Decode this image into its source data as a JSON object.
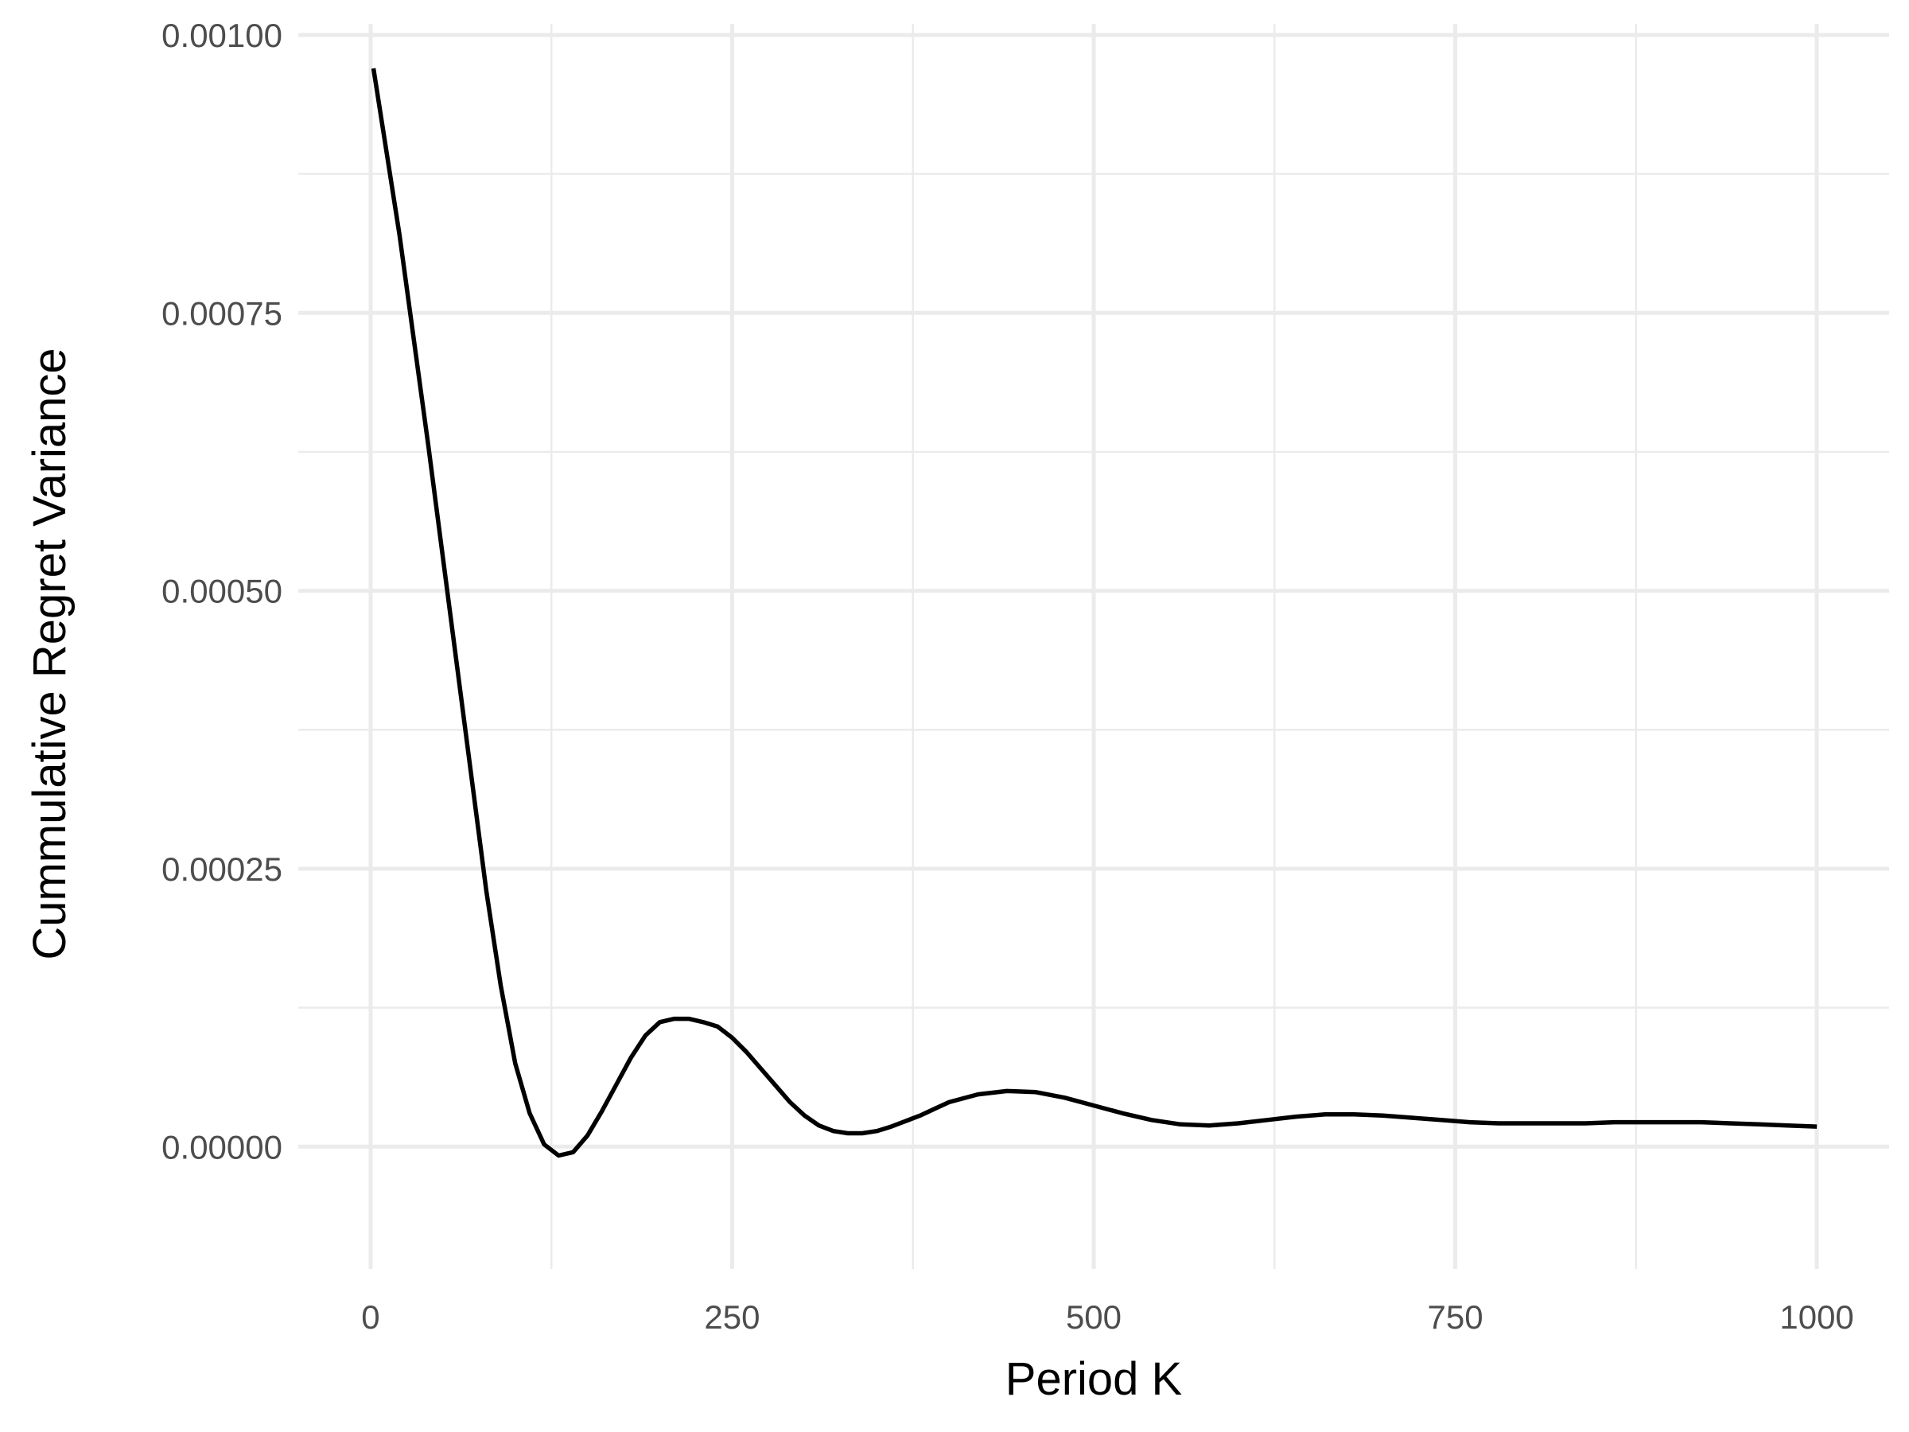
{
  "chart_data": {
    "type": "line",
    "title": "",
    "xlabel": "Period K",
    "ylabel": "Cummulative Regret Variance",
    "xlim": [
      -50,
      1050
    ],
    "ylim": [
      -0.00011,
      0.00101
    ],
    "x_ticks": [
      0,
      250,
      500,
      750,
      1000
    ],
    "x_tick_labels": [
      "0",
      "250",
      "500",
      "750",
      "1000"
    ],
    "x_minor_ticks": [
      125,
      375,
      625,
      875
    ],
    "y_ticks": [
      0,
      0.00025,
      0.0005,
      0.00075,
      0.001
    ],
    "y_tick_labels": [
      "0.00000",
      "0.00025",
      "0.00050",
      "0.00075",
      "0.00100"
    ],
    "y_minor_ticks": [
      0.000125,
      0.000375,
      0.000625,
      0.000875
    ],
    "grid": true,
    "legend": "none",
    "line_color": "#000000",
    "series": [
      {
        "x": [
          2,
          20,
          40,
          60,
          80,
          90,
          100,
          110,
          120,
          130,
          140,
          150,
          160,
          170,
          180,
          190,
          200,
          210,
          220,
          230,
          240,
          250,
          260,
          270,
          280,
          290,
          300,
          310,
          320,
          330,
          340,
          350,
          360,
          370,
          380,
          390,
          400,
          420,
          440,
          460,
          480,
          500,
          520,
          540,
          560,
          580,
          600,
          620,
          640,
          660,
          680,
          700,
          720,
          740,
          760,
          780,
          800,
          820,
          840,
          860,
          880,
          900,
          920,
          940,
          960,
          980,
          1000
        ],
        "y": [
          0.00097,
          0.00082,
          0.00063,
          0.00043,
          0.00023,
          0.000145,
          7.5e-05,
          3e-05,
          2e-06,
          -8e-06,
          -5e-06,
          1e-05,
          3.2e-05,
          5.6e-05,
          8e-05,
          0.0001,
          0.000112,
          0.000115,
          0.000115,
          0.000112,
          0.000108,
          9.8e-05,
          8.5e-05,
          7e-05,
          5.5e-05,
          4e-05,
          2.8e-05,
          1.9e-05,
          1.4e-05,
          1.2e-05,
          1.2e-05,
          1.4e-05,
          1.8e-05,
          2.3e-05,
          2.8e-05,
          3.4e-05,
          4e-05,
          4.7e-05,
          5e-05,
          4.9e-05,
          4.4e-05,
          3.7e-05,
          3e-05,
          2.4e-05,
          2e-05,
          1.9e-05,
          2.1e-05,
          2.4e-05,
          2.7e-05,
          2.9e-05,
          2.9e-05,
          2.8e-05,
          2.6e-05,
          2.4e-05,
          2.2e-05,
          2.1e-05,
          2.1e-05,
          2.1e-05,
          2.1e-05,
          2.2e-05,
          2.2e-05,
          2.2e-05,
          2.2e-05,
          2.1e-05,
          2e-05,
          1.9e-05,
          1.8e-05
        ]
      }
    ]
  }
}
